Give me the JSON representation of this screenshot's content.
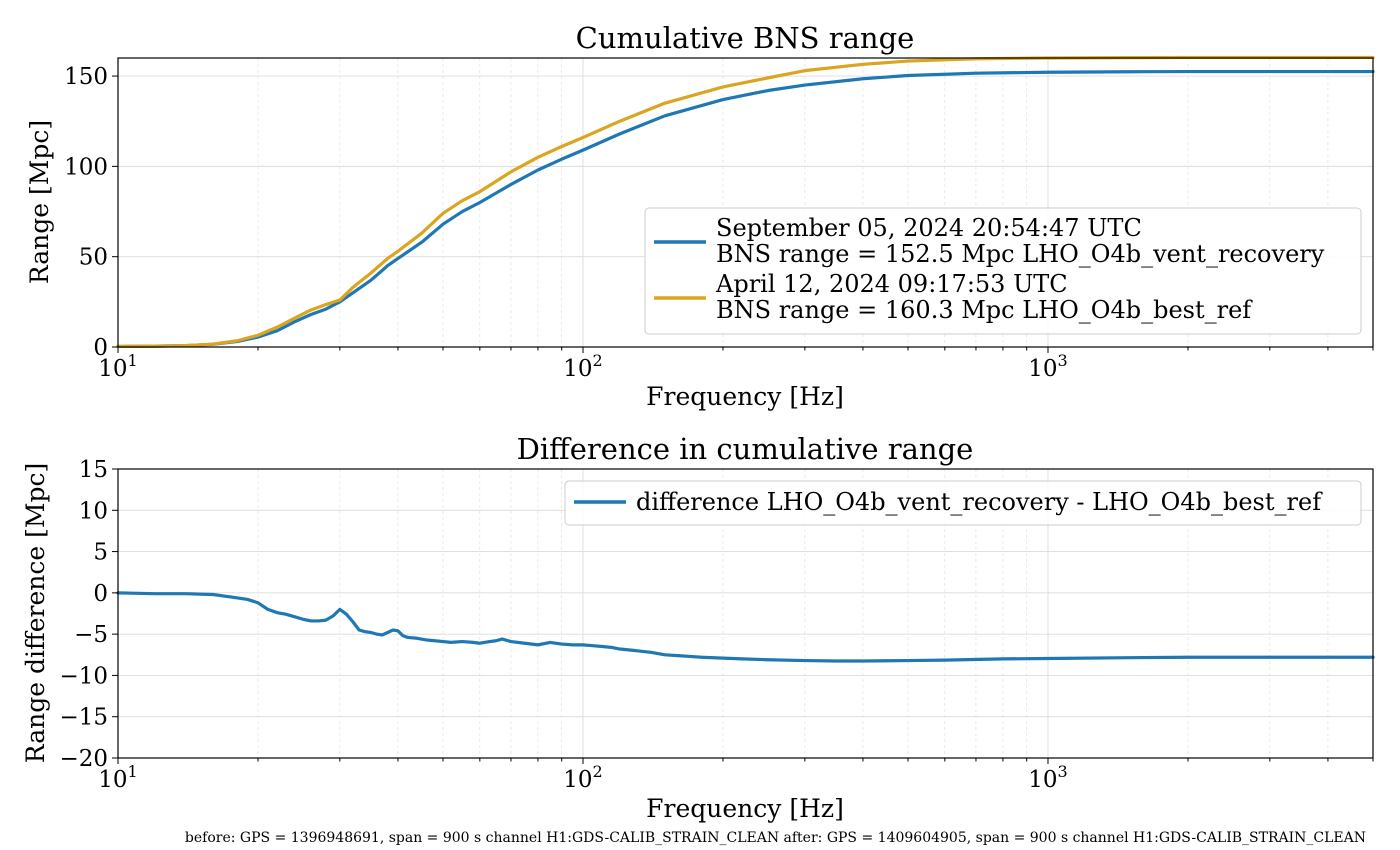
{
  "colors": {
    "blue": "#1f77b4",
    "gold": "#daa520",
    "grid": "#dcdcdc"
  },
  "chart_data": [
    {
      "type": "line",
      "title": "Cumulative BNS range",
      "xlabel": "Frequency [Hz]",
      "ylabel": "Range [Mpc]",
      "xscale": "log",
      "xlim": [
        10,
        5000
      ],
      "ylim": [
        0,
        160
      ],
      "yticks": [
        0,
        50,
        100,
        150
      ],
      "xtick_labels": [
        {
          "base": "10",
          "exp": "1"
        },
        {
          "base": "10",
          "exp": "2"
        },
        {
          "base": "10",
          "exp": "3"
        }
      ],
      "grid": true,
      "legend_position": "lower-right",
      "series": [
        {
          "name": "September 05, 2024 20:54:47 UTC",
          "name2": "BNS range = 152.5 Mpc LHO_O4b_vent_recovery",
          "color": "#1f77b4",
          "x": [
            10,
            12,
            14,
            16,
            18,
            20,
            22,
            24,
            26,
            28,
            30,
            32,
            35,
            38,
            40,
            45,
            50,
            55,
            60,
            70,
            80,
            90,
            100,
            120,
            150,
            200,
            250,
            300,
            400,
            500,
            700,
            1000,
            1500,
            2000,
            3000,
            5000
          ],
          "y": [
            0.3,
            0.5,
            0.8,
            1.5,
            3,
            5.5,
            9,
            14,
            18,
            21,
            25,
            30,
            37,
            45,
            49,
            58,
            68,
            75,
            80,
            90,
            98,
            104,
            109,
            118,
            128,
            137,
            142,
            145,
            148.5,
            150.3,
            151.6,
            152.1,
            152.4,
            152.5,
            152.5,
            152.5
          ]
        },
        {
          "name": "April 12, 2024 09:17:53 UTC",
          "name2": "BNS range = 160.3 Mpc LHO_O4b_best_ref",
          "color": "#daa520",
          "x": [
            10,
            12,
            14,
            16,
            18,
            20,
            22,
            24,
            26,
            28,
            30,
            32,
            35,
            38,
            40,
            45,
            50,
            55,
            60,
            70,
            80,
            90,
            100,
            120,
            150,
            200,
            250,
            300,
            400,
            500,
            700,
            1000,
            1500,
            2000,
            3000,
            5000
          ],
          "y": [
            0.3,
            0.5,
            0.8,
            1.6,
            3.4,
            6.5,
            11,
            16,
            20.5,
            23.5,
            26,
            33,
            41,
            49,
            53,
            63,
            74,
            81,
            86,
            97,
            105,
            111,
            116,
            125,
            135,
            144,
            149,
            153,
            156.5,
            158.3,
            159.6,
            160.0,
            160.2,
            160.3,
            160.3,
            160.3
          ]
        }
      ]
    },
    {
      "type": "line",
      "title": "Difference in cumulative range",
      "xlabel": "Frequency [Hz]",
      "ylabel": "Range difference [Mpc]",
      "xscale": "log",
      "xlim": [
        10,
        5000
      ],
      "ylim": [
        -20,
        15
      ],
      "yticks": [
        -20,
        -15,
        -10,
        -5,
        0,
        5,
        10,
        15
      ],
      "ytick_labels": [
        "−20",
        "−15",
        "−10",
        "−5",
        "0",
        "5",
        "10",
        "15"
      ],
      "xtick_labels": [
        {
          "base": "10",
          "exp": "1"
        },
        {
          "base": "10",
          "exp": "2"
        },
        {
          "base": "10",
          "exp": "3"
        }
      ],
      "grid": true,
      "legend_position": "top-right",
      "series": [
        {
          "name": "difference LHO_O4b_vent_recovery - LHO_O4b_best_ref",
          "color": "#1f77b4",
          "x": [
            10,
            12,
            13,
            14,
            15,
            16,
            17,
            18,
            19,
            20,
            21,
            22,
            23,
            24,
            25,
            26,
            27,
            28,
            29,
            30,
            31,
            32,
            33,
            34,
            35,
            36,
            37,
            38,
            39,
            40,
            41,
            42,
            44,
            46,
            48,
            50,
            52,
            55,
            58,
            60,
            63,
            65,
            67,
            70,
            75,
            80,
            85,
            90,
            95,
            100,
            105,
            110,
            115,
            120,
            130,
            140,
            150,
            160,
            170,
            180,
            200,
            220,
            250,
            300,
            350,
            400,
            500,
            600,
            800,
            1000,
            1500,
            2000,
            3000,
            5000
          ],
          "y": [
            0,
            -0.1,
            -0.1,
            -0.1,
            -0.15,
            -0.2,
            -0.4,
            -0.6,
            -0.8,
            -1.2,
            -2.0,
            -2.4,
            -2.6,
            -2.9,
            -3.2,
            -3.4,
            -3.4,
            -3.3,
            -2.8,
            -2.0,
            -2.6,
            -3.5,
            -4.5,
            -4.7,
            -4.8,
            -5.0,
            -5.1,
            -4.8,
            -4.5,
            -4.6,
            -5.2,
            -5.4,
            -5.5,
            -5.7,
            -5.8,
            -5.9,
            -6.0,
            -5.9,
            -6.0,
            -6.1,
            -5.9,
            -5.8,
            -5.6,
            -5.9,
            -6.1,
            -6.3,
            -6.0,
            -6.2,
            -6.3,
            -6.3,
            -6.4,
            -6.5,
            -6.6,
            -6.8,
            -7.0,
            -7.2,
            -7.5,
            -7.6,
            -7.7,
            -7.8,
            -7.9,
            -8.0,
            -8.1,
            -8.2,
            -8.25,
            -8.25,
            -8.2,
            -8.15,
            -8.0,
            -7.95,
            -7.85,
            -7.8,
            -7.8,
            -7.8
          ]
        }
      ]
    }
  ],
  "footer": "before: GPS = 1396948691, span = 900 s channel H1:GDS-CALIB_STRAIN_CLEAN after: GPS = 1409604905, span = 900 s channel H1:GDS-CALIB_STRAIN_CLEAN"
}
